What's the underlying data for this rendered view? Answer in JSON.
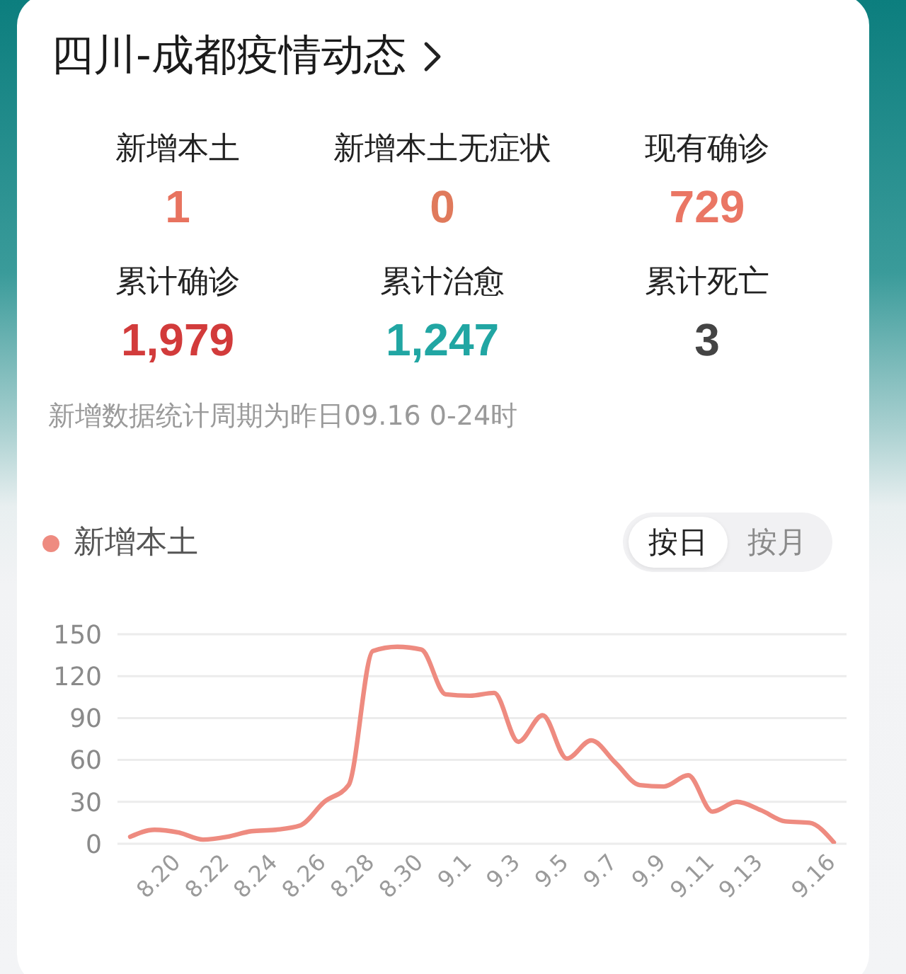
{
  "chart_data": [
    {
      "type": "other",
      "title": "四川-成都疫情动态",
      "categories": [
        "新增本土",
        "新增本土无症状",
        "现有确诊",
        "累计确诊",
        "累计治愈",
        "累计死亡"
      ],
      "values": [
        1,
        0,
        729,
        1979,
        1247,
        3
      ],
      "value_labels": [
        "1",
        "0",
        "729",
        "1,979",
        "1,247",
        "3"
      ],
      "colors": [
        "#e8735f",
        "#e07a5c",
        "#ea7664",
        "#d23b3b",
        "#21a6a3",
        "#444444"
      ],
      "annotations": [
        "新增数据统计周期为昨日09.16 0-24时"
      ]
    },
    {
      "type": "line",
      "categories": [
        null,
        null,
        "8.20",
        null,
        "8.22",
        null,
        "8.24",
        null,
        "8.26",
        null,
        "8.28",
        null,
        "8.30",
        null,
        "9.1",
        null,
        "9.3",
        null,
        "9.5",
        null,
        "9.7",
        null,
        "9.9",
        null,
        "9.11",
        null,
        "9.13",
        null,
        null,
        "9.16"
      ],
      "series": [
        {
          "name": "新增本土",
          "color": "#ee8b80",
          "values": [
            5,
            10,
            8,
            3,
            5,
            9,
            10,
            13,
            30,
            42,
            138,
            141,
            139,
            107,
            106,
            108,
            73,
            92,
            61,
            74,
            58,
            42,
            41,
            49,
            23,
            30,
            24,
            16,
            15,
            1
          ]
        }
      ],
      "ylim": [
        0,
        150
      ],
      "yticks": [
        0,
        30,
        60,
        90,
        120,
        150
      ],
      "grid": "y",
      "legend": "top left",
      "marker": "none",
      "annotations": [
        "按日",
        "按月"
      ]
    }
  ]
}
